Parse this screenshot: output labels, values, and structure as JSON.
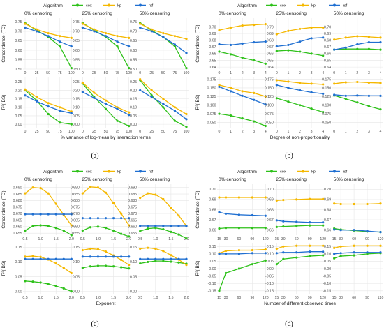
{
  "colors": {
    "cox": "#2ec11a",
    "kp": "#f5b800",
    "rsf": "#1f6fd1",
    "grid": "#e6e6e6",
    "panel": "#ffffff"
  },
  "chart_data": [
    {
      "type": "line",
      "id": "a",
      "label": "(a)",
      "legend_title": "Algorithm",
      "legend": [
        "cox",
        "kp",
        "rsf"
      ],
      "legend_position": "top",
      "xlabel": "% variance of log-mean by interaction terms",
      "x": [
        0,
        25,
        50,
        75,
        100
      ],
      "x_ticks": [
        "0",
        "25",
        "50",
        "75",
        "100"
      ],
      "columns": [
        "0% censoring",
        "25% censoring",
        "50% censoring"
      ],
      "rows": [
        {
          "ylabel": "Concordance (TD)",
          "ylim": [
            0.5,
            0.77
          ],
          "y_ticks": [
            0.5,
            0.55,
            0.6,
            0.65,
            0.7,
            0.75
          ],
          "y_tick_labels": [
            "0.50",
            "0.55",
            "0.60",
            "0.65",
            "0.70",
            "0.75"
          ],
          "panels": [
            {
              "cox": [
                0.745,
                0.705,
                0.67,
                0.62,
                0.505
              ],
              "kp": [
                0.74,
                0.71,
                0.69,
                0.675,
                0.665
              ],
              "rsf": [
                0.72,
                0.7,
                0.675,
                0.645,
                0.62
              ]
            },
            {
              "cox": [
                0.745,
                0.705,
                0.67,
                0.62,
                0.505
              ],
              "kp": [
                0.74,
                0.71,
                0.69,
                0.675,
                0.665
              ],
              "rsf": [
                0.72,
                0.7,
                0.675,
                0.645,
                0.62
              ]
            },
            {
              "cox": [
                0.745,
                0.705,
                0.67,
                0.62,
                0.505
              ],
              "kp": [
                0.74,
                0.71,
                0.69,
                0.675,
                0.66
              ],
              "rsf": [
                0.72,
                0.7,
                0.67,
                0.63,
                0.585
              ]
            }
          ]
        },
        {
          "ylabel": "R²(IBS)",
          "ylim": [
            -0.02,
            0.28
          ],
          "y_ticks": [
            0.0,
            0.05,
            0.1,
            0.15,
            0.2,
            0.25
          ],
          "y_tick_labels": [
            "0.00",
            "0.05",
            "0.10",
            "0.15",
            "0.20",
            "0.25"
          ],
          "panels": [
            {
              "cox": [
                0.2,
                0.14,
                0.06,
                0.01,
                0.0
              ],
              "kp": [
                0.205,
                0.16,
                0.125,
                0.1,
                0.075
              ],
              "rsf": [
                0.17,
                0.135,
                0.105,
                0.08,
                0.065
              ]
            },
            {
              "cox": [
                0.24,
                0.16,
                0.09,
                0.02,
                -0.01
              ],
              "kp": [
                0.245,
                0.185,
                0.14,
                0.1,
                0.07
              ],
              "rsf": [
                0.19,
                0.155,
                0.12,
                0.09,
                0.055
              ]
            },
            {
              "cox": [
                0.26,
                0.17,
                0.1,
                0.02,
                -0.015
              ],
              "kp": [
                0.265,
                0.2,
                0.15,
                0.1,
                0.06
              ],
              "rsf": [
                0.2,
                0.16,
                0.12,
                0.08,
                0.03
              ]
            }
          ]
        }
      ]
    },
    {
      "type": "line",
      "id": "b",
      "label": "(b)",
      "legend_title": "Algorithm",
      "legend": [
        "cox",
        "kp",
        "rsf"
      ],
      "legend_position": "top",
      "xlabel": "Degree of non-proportionality",
      "x": [
        0,
        1,
        2,
        3,
        4
      ],
      "x_ticks": [
        "0",
        "1",
        "2",
        "3",
        "4"
      ],
      "columns": [
        "0% censoring",
        "25% censoring",
        "50% censoring"
      ],
      "rows": [
        {
          "ylabel": "Concordance (TD)",
          "ylim": [
            0.637,
            0.713
          ],
          "y_ticks": [
            0.64,
            0.65,
            0.66,
            0.67,
            0.68,
            0.69,
            0.7
          ],
          "y_tick_labels": [
            "0.64",
            "0.65",
            "0.66",
            "0.67",
            "0.68",
            "0.69",
            "0.70"
          ],
          "panels": [
            {
              "cox": [
                0.663,
                0.659,
                0.654,
                0.65,
                0.645
              ],
              "kp": [
                0.695,
                0.699,
                0.702,
                0.703,
                0.704
              ],
              "rsf": [
                0.674,
                0.673,
                0.675,
                0.677,
                0.678
              ]
            },
            {
              "cox": [
                0.664,
                0.665,
                0.663,
                0.66,
                0.657
              ],
              "kp": [
                0.689,
                0.694,
                0.697,
                0.699,
                0.699
              ],
              "rsf": [
                0.671,
                0.673,
                0.678,
                0.683,
                0.684
              ]
            },
            {
              "cox": [
                0.666,
                0.667,
                0.667,
                0.667,
                0.666
              ],
              "kp": [
                0.681,
                0.684,
                0.686,
                0.685,
                0.684
              ],
              "rsf": [
                0.666,
                0.669,
                0.674,
                0.677,
                0.677
              ]
            }
          ]
        },
        {
          "ylabel": "R²(IBS)",
          "ylim": [
            0.035,
            0.182
          ],
          "y_ticks": [
            0.05,
            0.075,
            0.1,
            0.125,
            0.15,
            0.175
          ],
          "y_tick_labels": [
            "0.050",
            "0.075",
            "0.100",
            "0.125",
            "0.150",
            "0.175"
          ],
          "panels": [
            {
              "cox": [
                0.075,
                0.07,
                0.062,
                0.053,
                0.04
              ],
              "kp": [
                0.158,
                0.15,
                0.14,
                0.135,
                0.125
              ],
              "rsf": [
                0.153,
                0.14,
                0.127,
                0.115,
                0.102
              ]
            },
            {
              "cox": [
                0.12,
                0.11,
                0.1,
                0.09,
                0.08
              ],
              "kp": [
                0.172,
                0.168,
                0.164,
                0.162,
                0.16
              ],
              "rsf": [
                0.158,
                0.15,
                0.143,
                0.137,
                0.133
              ]
            },
            {
              "cox": [
                0.128,
                0.118,
                0.108,
                0.097,
                0.088
              ],
              "kp": [
                0.162,
                0.166,
                0.167,
                0.165,
                0.164
              ],
              "rsf": [
                0.13,
                0.127,
                0.128,
                0.127,
                0.127
              ]
            }
          ]
        }
      ]
    },
    {
      "type": "line",
      "id": "c",
      "label": "(c)",
      "legend_title": "Algorithm",
      "legend": [
        "cox",
        "kp",
        "rsf"
      ],
      "legend_position": "top",
      "xlabel": "Exponent",
      "x": [
        0.5,
        0.75,
        1.0,
        1.25,
        1.5,
        1.75,
        2.0
      ],
      "x_ticks": [
        "0.5",
        "1.0",
        "1.5",
        "2.0"
      ],
      "x_tick_values": [
        0.5,
        1.0,
        1.5,
        2.0
      ],
      "columns": [
        "0% censoring",
        "25% censoring",
        "50% censoring"
      ],
      "rows": [
        {
          "ylabel": "Concordance (TD)",
          "ylim": [
            0.6535,
            0.6925
          ],
          "y_ticks": [
            0.655,
            0.66,
            0.665,
            0.67,
            0.675,
            0.68,
            0.685,
            0.69
          ],
          "y_tick_labels": [
            "0.655",
            "0.660",
            "0.665",
            "0.670",
            "0.675",
            "0.680",
            "0.685",
            "0.690"
          ],
          "panels": [
            {
              "cox": [
                0.657,
                0.6605,
                0.661,
                0.6605,
                0.659,
                0.657,
                0.6535
              ],
              "kp": [
                0.6855,
                0.69,
                0.6895,
                0.6855,
                0.6775,
                0.669,
                0.661
              ],
              "rsf": [
                0.6695,
                0.6695,
                0.6695,
                0.6695,
                0.6695,
                0.6695,
                0.6695
              ]
            },
            {
              "cox": [
                0.657,
                0.6595,
                0.66,
                0.659,
                0.657,
                0.6545,
                0.6525
              ],
              "kp": [
                0.6855,
                0.6905,
                0.69,
                0.686,
                0.678,
                0.67,
                0.661
              ],
              "rsf": [
                0.6665,
                0.6665,
                0.6665,
                0.6665,
                0.6665,
                0.6665,
                0.6665
              ]
            },
            {
              "cox": [
                0.6565,
                0.6585,
                0.659,
                0.658,
                0.656,
                0.654,
                0.651
              ],
              "kp": [
                0.682,
                0.6855,
                0.6845,
                0.681,
                0.6745,
                0.6685,
                0.6605
              ],
              "rsf": [
                0.6605,
                0.6605,
                0.6605,
                0.6605,
                0.6605,
                0.6605,
                0.6605
              ]
            }
          ]
        },
        {
          "ylabel": "R²(IBS)",
          "ylim": [
            -0.008,
            0.165
          ],
          "y_ticks": [
            0.0,
            0.05,
            0.1,
            0.15
          ],
          "y_tick_labels": [
            "0.00",
            "0.05",
            "0.10",
            "0.15"
          ],
          "panels": [
            {
              "cox": [
                0.035,
                0.033,
                0.03,
                0.025,
                0.018,
                0.01,
                0.0
              ],
              "kp": [
                0.118,
                0.12,
                0.117,
                0.108,
                0.095,
                0.08,
                0.062
              ],
              "rsf": [
                0.11,
                0.11,
                0.11,
                0.11,
                0.11,
                0.11,
                0.11
              ]
            },
            {
              "cox": [
                0.08,
                0.085,
                0.087,
                0.087,
                0.085,
                0.082,
                0.078
              ],
              "kp": [
                0.14,
                0.145,
                0.143,
                0.135,
                0.122,
                0.107,
                0.09
              ],
              "rsf": [
                0.118,
                0.118,
                0.118,
                0.118,
                0.118,
                0.118,
                0.118
              ]
            },
            {
              "cox": [
                0.095,
                0.1,
                0.103,
                0.103,
                0.101,
                0.098,
                0.094
              ],
              "kp": [
                0.145,
                0.148,
                0.145,
                0.137,
                0.123,
                0.108,
                0.09
              ],
              "rsf": [
                0.11,
                0.11,
                0.11,
                0.11,
                0.11,
                0.11,
                0.11
              ]
            }
          ]
        }
      ]
    },
    {
      "type": "line",
      "id": "d",
      "label": "(d)",
      "legend_title": "Algorithm",
      "legend": [
        "cox",
        "kp",
        "rsf"
      ],
      "legend_position": "top",
      "xlabel": "Number of different observed times",
      "x": [
        15,
        30,
        60,
        90,
        120
      ],
      "x_ticks": [
        "15",
        "30",
        "60",
        "90",
        "120"
      ],
      "x_tick_values": [
        15,
        30,
        60,
        90,
        120
      ],
      "columns": [
        "0% censoring",
        "25% censoring",
        "50% censoring"
      ],
      "rows": [
        {
          "ylabel": "Concordance (TD)",
          "ylim": [
            0.655,
            0.705
          ],
          "y_ticks": [
            0.66,
            0.67,
            0.68,
            0.69,
            0.7
          ],
          "y_tick_labels": [
            "0.66",
            "0.67",
            "0.68",
            "0.69",
            "0.70"
          ],
          "panels": [
            {
              "cox": [
                0.6615,
                0.662,
                0.662,
                0.662,
                0.662
              ],
              "kp": [
                0.692,
                0.692,
                0.692,
                0.692,
                0.692
              ],
              "rsf": [
                0.6775,
                0.676,
                0.675,
                0.6745,
                0.674
              ]
            },
            {
              "cox": [
                0.663,
                0.6635,
                0.664,
                0.6645,
                0.6645
              ],
              "kp": [
                0.689,
                0.6895,
                0.69,
                0.6905,
                0.6905
              ],
              "rsf": [
                0.6695,
                0.6685,
                0.668,
                0.6675,
                0.6675
              ]
            },
            {
              "cox": [
                0.6615,
                0.6605,
                0.6595,
                0.6585,
                0.658
              ],
              "kp": [
                0.686,
                0.6855,
                0.6855,
                0.6855,
                0.686
              ],
              "rsf": [
                0.6605,
                0.66,
                0.66,
                0.659,
                0.658
              ]
            }
          ]
        },
        {
          "ylabel": "R²(IBS)",
          "ylim": [
            -0.17,
            0.175
          ],
          "y_ticks": [
            -0.15,
            -0.1,
            -0.05,
            0.0,
            0.05,
            0.1,
            0.15
          ],
          "y_tick_labels": [
            "-0.15",
            "-0.10",
            "-0.05",
            "0.00",
            "0.05",
            "0.10",
            "0.15"
          ],
          "panels": [
            {
              "cox": [
                -0.15,
                -0.03,
                0.0,
                0.03,
                0.055
              ],
              "kp": [
                0.105,
                0.12,
                0.125,
                0.125,
                0.13
              ],
              "rsf": [
                0.1,
                0.1,
                0.1,
                0.105,
                0.105
              ]
            },
            {
              "cox": [
                0.03,
                0.065,
                0.075,
                0.085,
                0.09
              ],
              "kp": [
                0.135,
                0.15,
                0.155,
                0.155,
                0.155
              ],
              "rsf": [
                0.105,
                0.11,
                0.11,
                0.115,
                0.115
              ]
            },
            {
              "cox": [
                0.07,
                0.085,
                0.09,
                0.1,
                0.105
              ],
              "kp": [
                0.14,
                0.15,
                0.155,
                0.155,
                0.155
              ],
              "rsf": [
                0.1,
                0.105,
                0.11,
                0.11,
                0.11
              ]
            }
          ]
        }
      ]
    }
  ]
}
